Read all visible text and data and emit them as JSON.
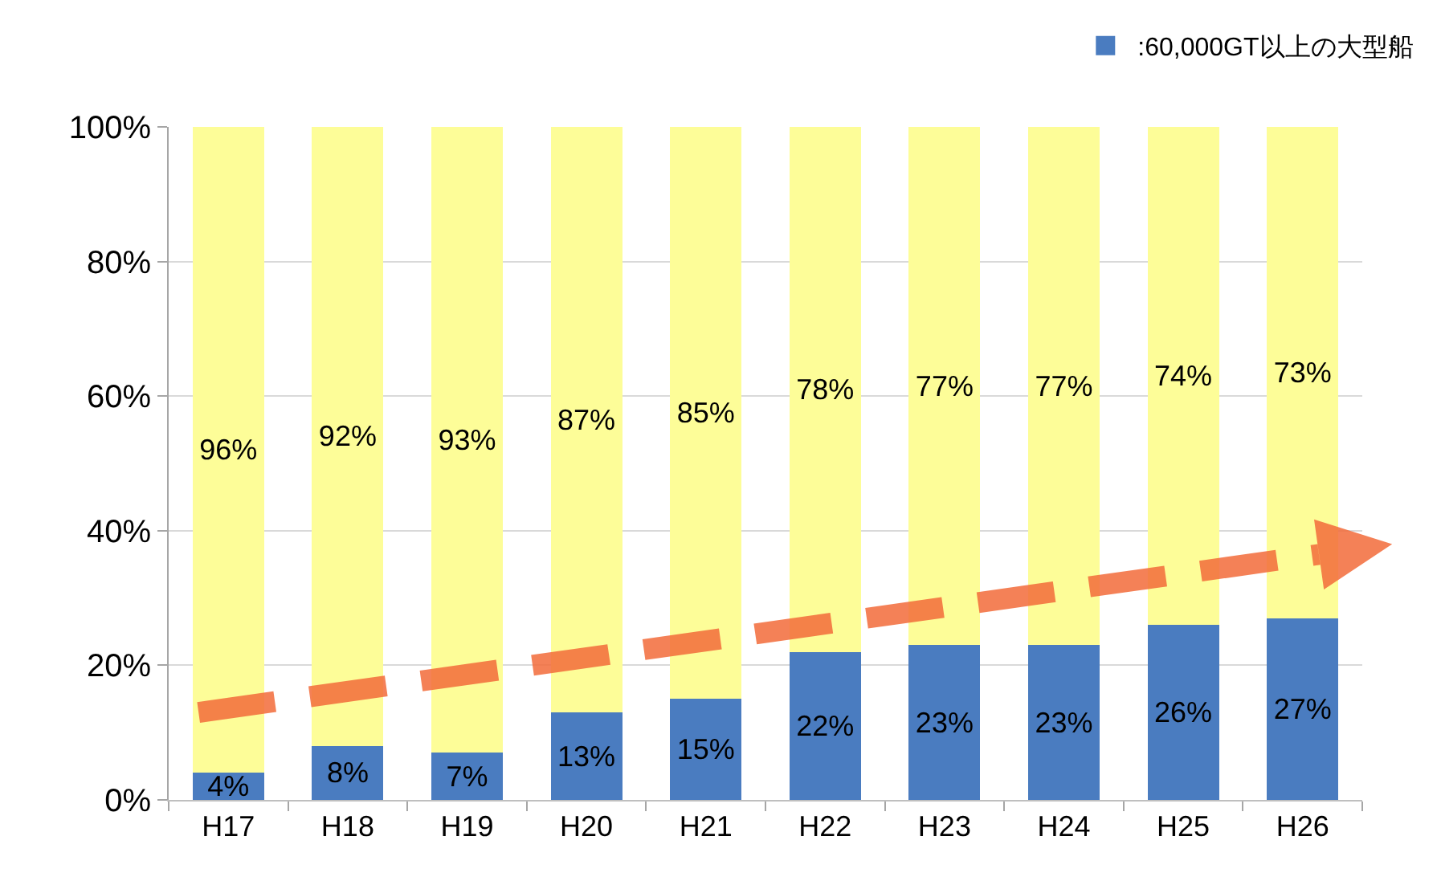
{
  "chart_data": {
    "type": "bar",
    "stacked": true,
    "categories": [
      "H17",
      "H18",
      "H19",
      "H20",
      "H21",
      "H22",
      "H23",
      "H24",
      "H25",
      "H26"
    ],
    "series": [
      {
        "name": ":60,000GT以上の大型船",
        "color": "#4a7cc0",
        "values": [
          4,
          8,
          7,
          13,
          15,
          22,
          23,
          23,
          26,
          27
        ],
        "value_labels": [
          "4%",
          "8%",
          "7%",
          "13%",
          "15%",
          "22%",
          "23%",
          "23%",
          "26%",
          "27%"
        ]
      },
      {
        "color": "#fdfd98",
        "values": [
          96,
          92,
          93,
          87,
          85,
          78,
          77,
          77,
          74,
          73
        ],
        "value_labels": [
          "96%",
          "92%",
          "93%",
          "87%",
          "85%",
          "78%",
          "77%",
          "77%",
          "74%",
          "73%"
        ]
      }
    ],
    "ylim": [
      0,
      100
    ],
    "yticks": [
      {
        "value": 0,
        "label": "0%"
      },
      {
        "value": 20,
        "label": "20%"
      },
      {
        "value": 40,
        "label": "40%"
      },
      {
        "value": 60,
        "label": "60%"
      },
      {
        "value": 80,
        "label": "80%"
      },
      {
        "value": 100,
        "label": "100%"
      }
    ],
    "grid": "y",
    "legend": "top right"
  }
}
